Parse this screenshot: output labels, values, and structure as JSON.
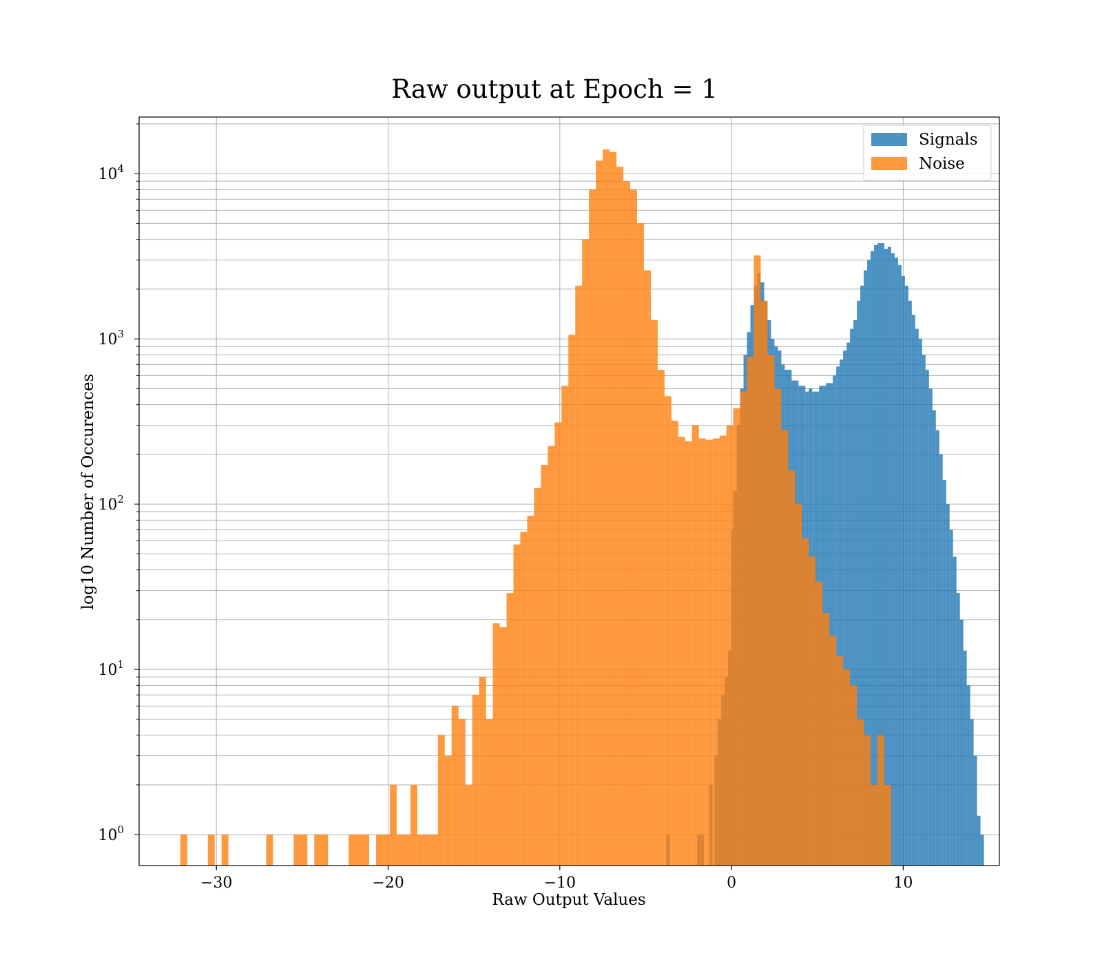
{
  "chart_data": {
    "type": "bar",
    "title": "Raw output at Epoch = 1",
    "xlabel": "Raw Output Values",
    "ylabel": "log10 Number of Occurences",
    "y_scale": "log",
    "xlim": [
      -34.5,
      15.6
    ],
    "ylim": [
      0.65,
      22000
    ],
    "x_ticks": [
      -30,
      -20,
      -10,
      0,
      10
    ],
    "x_tick_labels": [
      "−30",
      "−20",
      "−10",
      "0",
      "10"
    ],
    "y_ticks": [
      {
        "value": 1,
        "base": "10",
        "exp": "0"
      },
      {
        "value": 10,
        "base": "10",
        "exp": "1"
      },
      {
        "value": 100,
        "base": "10",
        "exp": "2"
      },
      {
        "value": 1000,
        "base": "10",
        "exp": "3"
      },
      {
        "value": 10000,
        "base": "10",
        "exp": "4"
      }
    ],
    "grid": true,
    "legend_position": "top-right",
    "series": [
      {
        "name": "Signals",
        "color": "#1f77b4",
        "bins": [
          [
            -3.8,
            -3.6,
            1
          ],
          [
            -2,
            -1.6,
            1
          ],
          [
            -1.3,
            -1.1,
            2
          ],
          [
            -1,
            -0.8,
            3
          ],
          [
            -0.8,
            -0.6,
            5
          ],
          [
            -0.6,
            -0.4,
            7
          ],
          [
            -0.4,
            -0.2,
            9
          ],
          [
            -0.2,
            0,
            13
          ],
          [
            0,
            0.1,
            70
          ],
          [
            0.1,
            0.3,
            120
          ],
          [
            0.3,
            0.5,
            300
          ],
          [
            0.5,
            0.7,
            500
          ],
          [
            0.7,
            0.9,
            800
          ],
          [
            0.9,
            1.1,
            1100
          ],
          [
            1.1,
            1.3,
            1600
          ],
          [
            1.3,
            1.5,
            2100
          ],
          [
            1.5,
            1.7,
            2500
          ],
          [
            1.7,
            1.9,
            2200
          ],
          [
            1.9,
            2.1,
            1700
          ],
          [
            2.1,
            2.3,
            1300
          ],
          [
            2.3,
            2.5,
            1000
          ],
          [
            2.5,
            2.7,
            900
          ],
          [
            2.7,
            2.9,
            850
          ],
          [
            2.9,
            3.1,
            700
          ],
          [
            3.1,
            3.5,
            650
          ],
          [
            3.5,
            3.9,
            560
          ],
          [
            3.9,
            4.3,
            520
          ],
          [
            4.3,
            4.5,
            480
          ],
          [
            4.5,
            4.7,
            500
          ],
          [
            4.7,
            5.1,
            480
          ],
          [
            5.1,
            5.5,
            520
          ],
          [
            5.5,
            5.9,
            540
          ],
          [
            5.9,
            6.1,
            600
          ],
          [
            6.1,
            6.3,
            680
          ],
          [
            6.3,
            6.5,
            750
          ],
          [
            6.5,
            6.7,
            850
          ],
          [
            6.7,
            6.9,
            950
          ],
          [
            6.9,
            7.1,
            1150
          ],
          [
            7.1,
            7.3,
            1300
          ],
          [
            7.3,
            7.5,
            1700
          ],
          [
            7.5,
            7.7,
            2100
          ],
          [
            7.7,
            7.9,
            2600
          ],
          [
            7.9,
            8.1,
            3000
          ],
          [
            8.1,
            8.3,
            3400
          ],
          [
            8.3,
            8.5,
            3700
          ],
          [
            8.5,
            8.9,
            3800
          ],
          [
            8.9,
            9.1,
            3500
          ],
          [
            9.1,
            9.3,
            3600
          ],
          [
            9.3,
            9.5,
            3300
          ],
          [
            9.5,
            9.7,
            3100
          ],
          [
            9.7,
            9.9,
            2800
          ],
          [
            9.9,
            10.1,
            2400
          ],
          [
            10.1,
            10.3,
            2100
          ],
          [
            10.3,
            10.5,
            1700
          ],
          [
            10.5,
            10.7,
            1400
          ],
          [
            10.7,
            10.9,
            1150
          ],
          [
            10.9,
            11.1,
            1000
          ],
          [
            11.1,
            11.3,
            800
          ],
          [
            11.3,
            11.5,
            650
          ],
          [
            11.5,
            11.7,
            500
          ],
          [
            11.7,
            11.9,
            370
          ],
          [
            11.9,
            12.1,
            280
          ],
          [
            12.1,
            12.3,
            200
          ],
          [
            12.3,
            12.5,
            140
          ],
          [
            12.5,
            12.7,
            100
          ],
          [
            12.7,
            12.9,
            70
          ],
          [
            12.9,
            13.1,
            48
          ],
          [
            13.1,
            13.3,
            29
          ],
          [
            13.3,
            13.5,
            20
          ],
          [
            13.5,
            13.7,
            13
          ],
          [
            13.7,
            13.9,
            8
          ],
          [
            13.9,
            14.1,
            5
          ],
          [
            14.1,
            14.3,
            3
          ],
          [
            14.3,
            14.5,
            1.3
          ],
          [
            14.5,
            14.7,
            1
          ]
        ]
      },
      {
        "name": "Noise",
        "color": "#ff7f0e",
        "bins": [
          [
            -32.1,
            -31.7,
            1
          ],
          [
            -30.5,
            -30.1,
            1
          ],
          [
            -29.7,
            -29.3,
            1
          ],
          [
            -27.1,
            -26.7,
            1
          ],
          [
            -25.5,
            -25.1,
            1
          ],
          [
            -25.1,
            -24.7,
            1
          ],
          [
            -24.3,
            -23.9,
            1
          ],
          [
            -23.9,
            -23.5,
            1
          ],
          [
            -22.3,
            -21.9,
            1
          ],
          [
            -21.9,
            -21.5,
            1
          ],
          [
            -21.5,
            -21.1,
            1
          ],
          [
            -20.7,
            -20.3,
            1
          ],
          [
            -20.3,
            -19.9,
            1
          ],
          [
            -19.9,
            -19.5,
            2
          ],
          [
            -19.5,
            -19.1,
            1
          ],
          [
            -19.1,
            -18.7,
            1
          ],
          [
            -18.7,
            -18.3,
            2
          ],
          [
            -18.3,
            -17.9,
            1
          ],
          [
            -17.9,
            -17.5,
            1
          ],
          [
            -17.5,
            -17.1,
            1
          ],
          [
            -17.1,
            -16.7,
            4
          ],
          [
            -16.7,
            -16.3,
            3
          ],
          [
            -16.3,
            -15.9,
            6
          ],
          [
            -15.9,
            -15.5,
            5
          ],
          [
            -15.5,
            -15.1,
            2
          ],
          [
            -15.1,
            -14.7,
            7
          ],
          [
            -14.7,
            -14.3,
            9
          ],
          [
            -14.3,
            -13.9,
            5
          ],
          [
            -13.9,
            -13.5,
            19
          ],
          [
            -13.5,
            -13.1,
            18
          ],
          [
            -13.1,
            -12.7,
            29
          ],
          [
            -12.7,
            -12.3,
            57
          ],
          [
            -12.3,
            -11.9,
            68
          ],
          [
            -11.9,
            -11.5,
            85
          ],
          [
            -11.5,
            -11.1,
            125
          ],
          [
            -11.1,
            -10.7,
            173
          ],
          [
            -10.7,
            -10.3,
            225
          ],
          [
            -10.3,
            -9.9,
            312
          ],
          [
            -9.9,
            -9.5,
            520
          ],
          [
            -9.5,
            -9.1,
            1060
          ],
          [
            -9.1,
            -8.7,
            2100
          ],
          [
            -8.7,
            -8.3,
            4000
          ],
          [
            -8.3,
            -7.9,
            8000
          ],
          [
            -7.9,
            -7.5,
            12000
          ],
          [
            -7.5,
            -7.1,
            14000
          ],
          [
            -7.1,
            -6.7,
            13500
          ],
          [
            -6.7,
            -6.3,
            11000
          ],
          [
            -6.3,
            -5.9,
            9000
          ],
          [
            -5.9,
            -5.5,
            8000
          ],
          [
            -5.5,
            -5.1,
            5000
          ],
          [
            -5.1,
            -4.7,
            2600
          ],
          [
            -4.7,
            -4.3,
            1300
          ],
          [
            -4.3,
            -3.9,
            650
          ],
          [
            -3.9,
            -3.5,
            450
          ],
          [
            -3.5,
            -3.1,
            320
          ],
          [
            -3.1,
            -2.7,
            255
          ],
          [
            -2.7,
            -2.3,
            240
          ],
          [
            -2.3,
            -1.9,
            300
          ],
          [
            -1.9,
            -1.5,
            250
          ],
          [
            -1.5,
            -1.1,
            245
          ],
          [
            -1.1,
            -0.7,
            250
          ],
          [
            -0.7,
            -0.3,
            260
          ],
          [
            -0.3,
            0.1,
            300
          ],
          [
            0.1,
            0.5,
            380
          ],
          [
            0.5,
            0.9,
            480
          ],
          [
            0.9,
            1.3,
            780
          ],
          [
            1.3,
            1.7,
            3200
          ],
          [
            1.7,
            2.1,
            1700
          ],
          [
            2.1,
            2.5,
            800
          ],
          [
            2.5,
            2.9,
            500
          ],
          [
            2.9,
            3.3,
            280
          ],
          [
            3.3,
            3.7,
            160
          ],
          [
            3.7,
            4.1,
            100
          ],
          [
            4.1,
            4.5,
            62
          ],
          [
            4.5,
            4.9,
            48
          ],
          [
            4.9,
            5.3,
            34
          ],
          [
            5.3,
            5.7,
            22
          ],
          [
            5.7,
            6.1,
            16
          ],
          [
            6.1,
            6.5,
            12
          ],
          [
            6.5,
            6.9,
            10
          ],
          [
            6.9,
            7.3,
            8
          ],
          [
            7.3,
            7.7,
            5
          ],
          [
            7.7,
            8.1,
            4
          ],
          [
            8.1,
            8.5,
            2
          ],
          [
            8.5,
            8.9,
            4
          ],
          [
            8.9,
            9.3,
            2
          ]
        ]
      }
    ]
  }
}
